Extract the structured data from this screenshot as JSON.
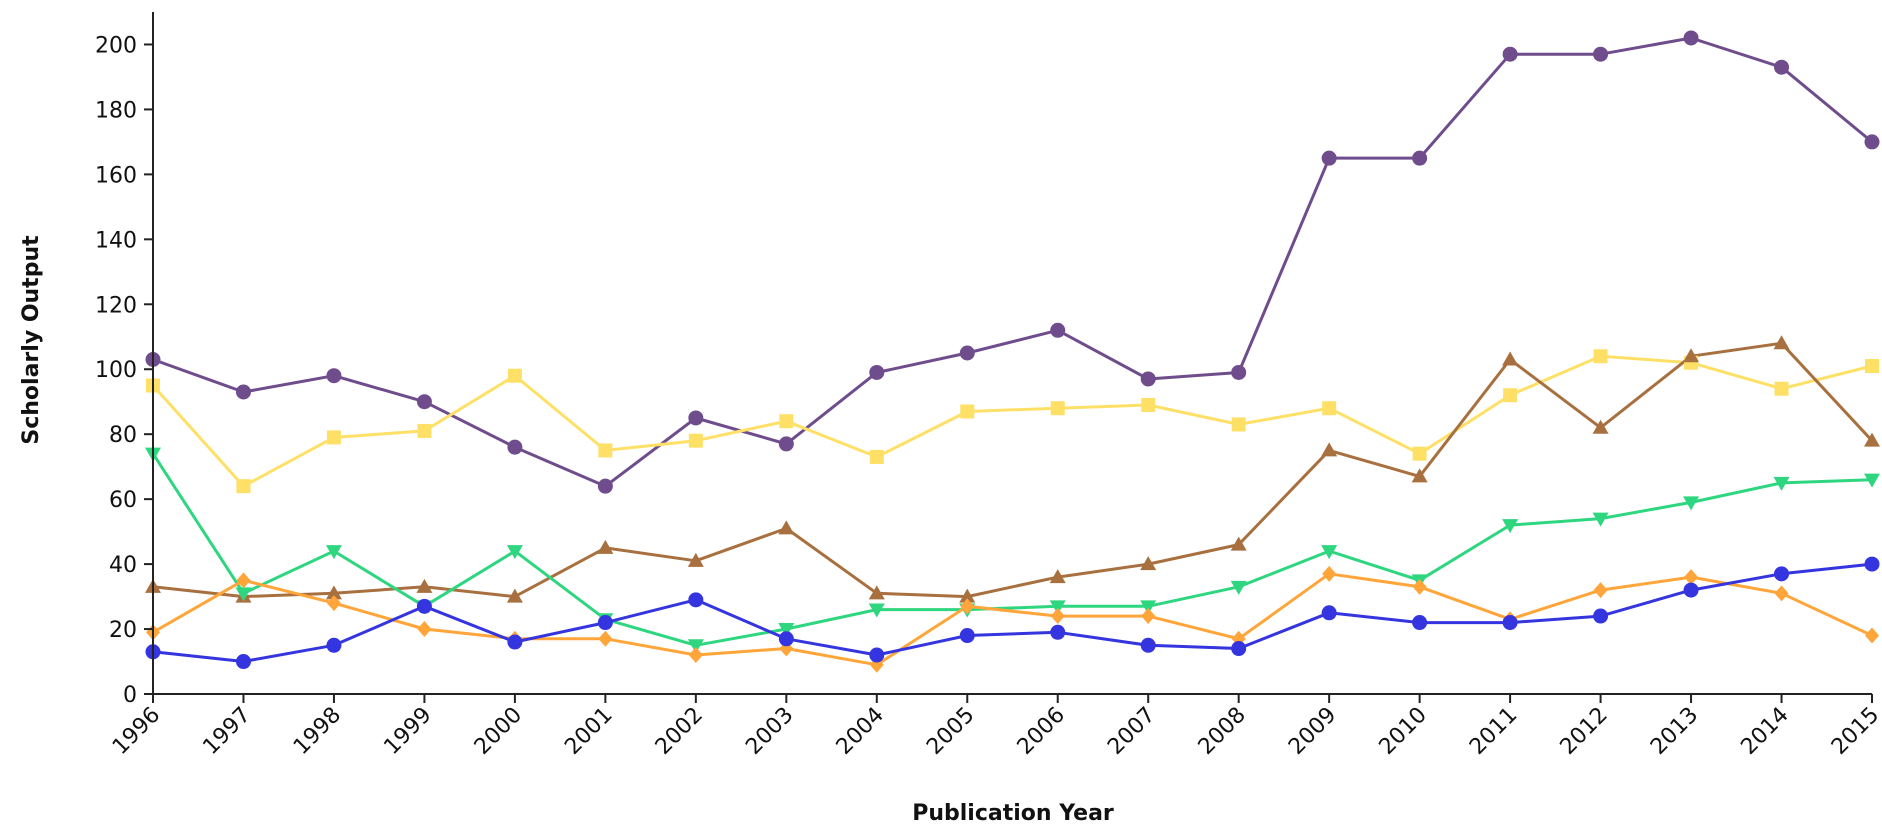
{
  "chart_data": {
    "type": "line",
    "title": "",
    "xlabel": "Publication Year",
    "ylabel": "Scholarly Output",
    "xlim": [
      1996,
      2015
    ],
    "ylim": [
      0,
      210
    ],
    "yticks": [
      0,
      20,
      40,
      60,
      80,
      100,
      120,
      140,
      160,
      180,
      200
    ],
    "categories": [
      "1996",
      "1997",
      "1998",
      "1999",
      "2000",
      "2001",
      "2002",
      "2003",
      "2004",
      "2005",
      "2006",
      "2007",
      "2008",
      "2009",
      "2010",
      "2011",
      "2012",
      "2013",
      "2014",
      "2015"
    ],
    "grid": false,
    "legend": "none",
    "series": [
      {
        "color": "#6f4d8c",
        "marker": "circle",
        "values": [
          103,
          93,
          98,
          90,
          76,
          64,
          85,
          77,
          99,
          105,
          112,
          97,
          99,
          165,
          165,
          197,
          197,
          202,
          193,
          170
        ]
      },
      {
        "color": "#ffe066",
        "marker": "square",
        "values": [
          95,
          64,
          79,
          81,
          98,
          75,
          78,
          84,
          73,
          87,
          88,
          89,
          83,
          88,
          74,
          92,
          104,
          102,
          94,
          101
        ]
      },
      {
        "color": "#a8703f",
        "marker": "triangle-up",
        "values": [
          33,
          30,
          31,
          33,
          30,
          45,
          41,
          51,
          31,
          30,
          36,
          40,
          46,
          75,
          67,
          103,
          82,
          104,
          108,
          78
        ]
      },
      {
        "color": "#2ed67f",
        "marker": "triangle-down",
        "values": [
          74,
          31,
          44,
          27,
          44,
          23,
          15,
          20,
          26,
          26,
          27,
          27,
          33,
          44,
          35,
          52,
          54,
          59,
          65,
          66
        ]
      },
      {
        "color": "#ffa53a",
        "marker": "diamond",
        "values": [
          19,
          35,
          28,
          20,
          17,
          17,
          12,
          14,
          9,
          27,
          24,
          24,
          17,
          37,
          33,
          23,
          32,
          36,
          31,
          18
        ]
      },
      {
        "color": "#3535e0",
        "marker": "circle",
        "values": [
          13,
          10,
          15,
          27,
          16,
          22,
          29,
          17,
          12,
          18,
          19,
          15,
          14,
          25,
          22,
          22,
          24,
          32,
          37,
          40
        ]
      }
    ]
  }
}
